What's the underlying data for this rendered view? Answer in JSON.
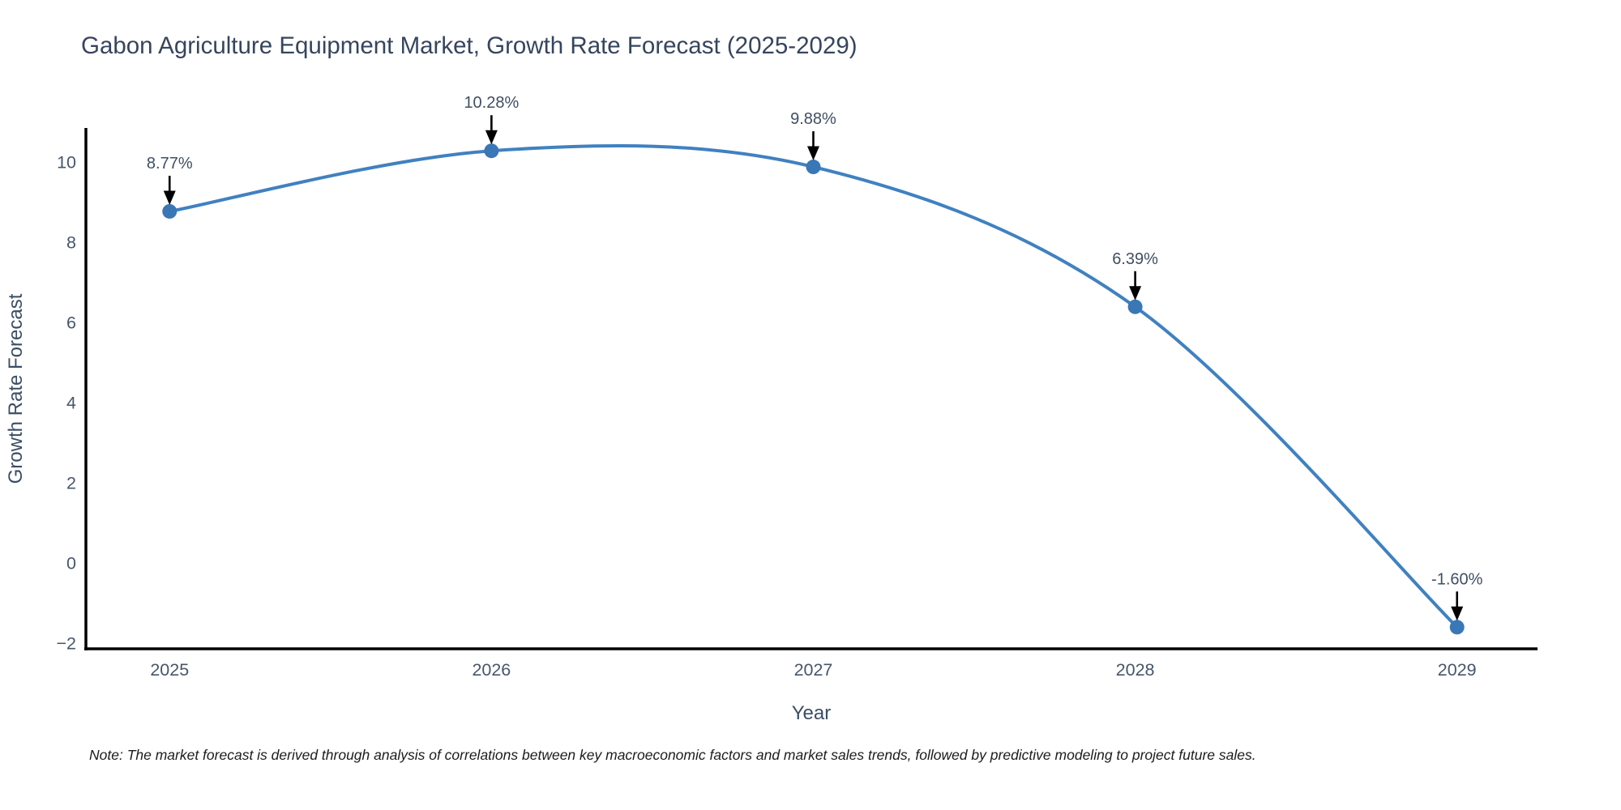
{
  "title": {
    "text": "Gabon Agriculture Equipment Market, Growth Rate Forecast (2025-2029)"
  },
  "note": {
    "text": "Note: The market forecast is derived through analysis of correlations between key macroeconomic factors and market sales trends, followed by predictive modeling to project future sales."
  },
  "chart_data": {
    "type": "line",
    "line_shape": "spline",
    "title": "Gabon Agriculture Equipment Market, Growth Rate Forecast (2025-2029)",
    "xlabel": "Year",
    "ylabel": "Growth Rate Forecast",
    "x": [
      2025,
      2026,
      2027,
      2028,
      2029
    ],
    "series": [
      {
        "name": "Growth Rate Forecast",
        "values": [
          8.77,
          10.28,
          9.88,
          6.39,
          -1.6
        ]
      }
    ],
    "point_labels": [
      "8.77%",
      "10.28%",
      "9.88%",
      "6.39%",
      "-1.60%"
    ],
    "xticks": {
      "values": [
        2025,
        2026,
        2027,
        2028,
        2029
      ],
      "labels": [
        "2025",
        "2026",
        "2027",
        "2028",
        "2029"
      ]
    },
    "yticks": {
      "values": [
        -2,
        0,
        2,
        4,
        6,
        8,
        10
      ],
      "labels": [
        "−2",
        "0",
        "2",
        "4",
        "6",
        "8",
        "10"
      ]
    },
    "xlim": [
      2024.74,
      2029.25
    ],
    "ylim": [
      -2.14,
      10.81
    ],
    "grid": false,
    "legend_position": "none",
    "colors": {
      "line": "#4081c0",
      "marker": "#3a77b6",
      "arrow": "#000000",
      "axis": "#000000",
      "tick_label": "#47566a",
      "axis_title": "#3b4d63",
      "title": "#36455e",
      "annotation": "#404f63",
      "background": "#ffffff"
    }
  }
}
